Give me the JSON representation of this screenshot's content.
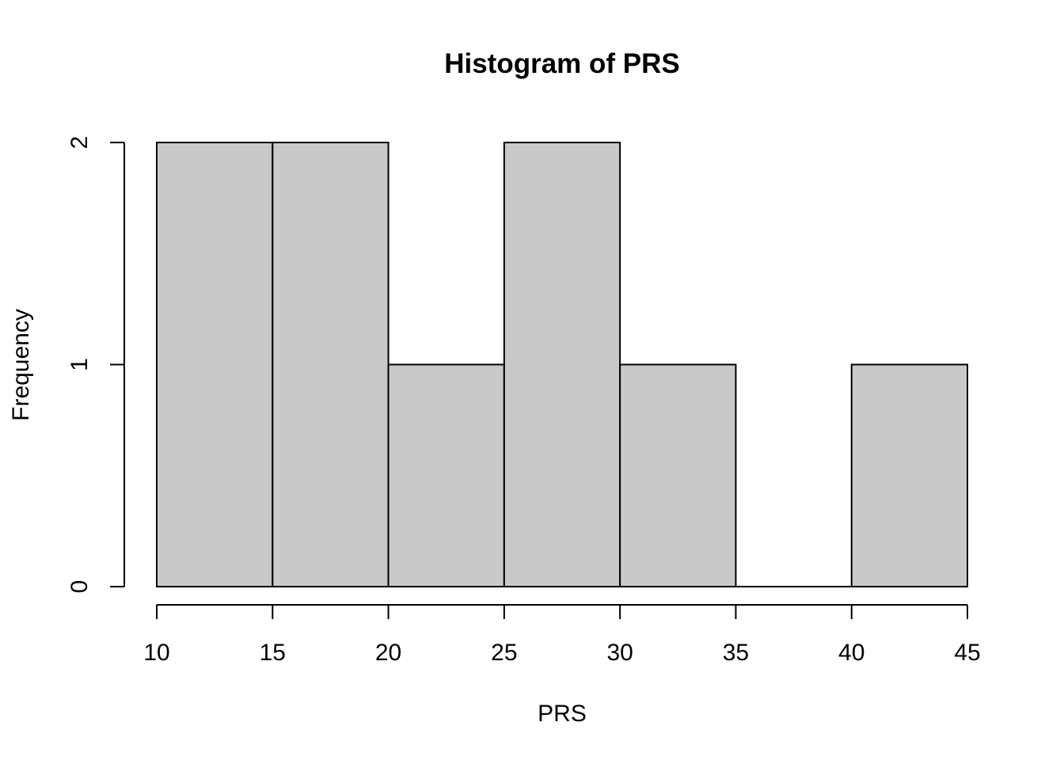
{
  "chart_data": {
    "type": "bar",
    "title": "Histogram of PRS",
    "xlabel": "PRS",
    "ylabel": "Frequency",
    "bins": [
      {
        "start": 10,
        "end": 15,
        "count": 2
      },
      {
        "start": 15,
        "end": 20,
        "count": 2
      },
      {
        "start": 20,
        "end": 25,
        "count": 1
      },
      {
        "start": 25,
        "end": 30,
        "count": 2
      },
      {
        "start": 30,
        "end": 35,
        "count": 1
      },
      {
        "start": 35,
        "end": 40,
        "count": 0
      },
      {
        "start": 40,
        "end": 45,
        "count": 1
      }
    ],
    "xlim": [
      10,
      45
    ],
    "ylim": [
      0,
      2
    ],
    "x_ticks": [
      "10",
      "15",
      "20",
      "25",
      "30",
      "35",
      "40",
      "45"
    ],
    "y_ticks": [
      "0",
      "1",
      "2"
    ],
    "grid": false,
    "legend": "none",
    "bar_color": "#c9c9c9",
    "edge_color": "#000000"
  }
}
